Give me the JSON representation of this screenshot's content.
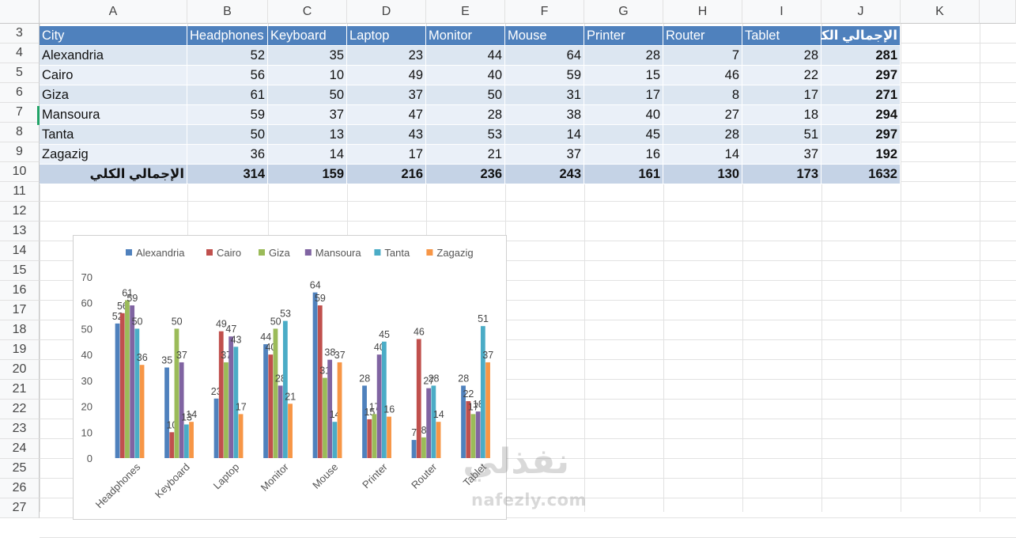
{
  "sheet": {
    "columns": [
      "A",
      "B",
      "C",
      "D",
      "E",
      "F",
      "G",
      "H",
      "I",
      "J",
      "K"
    ],
    "rows": [
      "3",
      "4",
      "5",
      "6",
      "7",
      "8",
      "9",
      "10",
      "11",
      "12",
      "13",
      "14",
      "15",
      "16",
      "17",
      "18",
      "19",
      "20",
      "21",
      "22",
      "23",
      "24",
      "25",
      "26",
      "27"
    ],
    "table": {
      "headers": [
        "City",
        "Headphones",
        "Keyboard",
        "Laptop",
        "Monitor",
        "Mouse",
        "Printer",
        "Router",
        "Tablet",
        "الإجمالي الكلي"
      ],
      "rows": [
        {
          "city": "Alexandria",
          "values": [
            "52",
            "35",
            "23",
            "44",
            "64",
            "28",
            "7",
            "28"
          ],
          "total": "281"
        },
        {
          "city": "Cairo",
          "values": [
            "56",
            "10",
            "49",
            "40",
            "59",
            "15",
            "46",
            "22"
          ],
          "total": "297"
        },
        {
          "city": "Giza",
          "values": [
            "61",
            "50",
            "37",
            "50",
            "31",
            "17",
            "8",
            "17"
          ],
          "total": "271"
        },
        {
          "city": "Mansoura",
          "values": [
            "59",
            "37",
            "47",
            "28",
            "38",
            "40",
            "27",
            "18"
          ],
          "total": "294"
        },
        {
          "city": "Tanta",
          "values": [
            "50",
            "13",
            "43",
            "53",
            "14",
            "45",
            "28",
            "51"
          ],
          "total": "297"
        },
        {
          "city": "Zagazig",
          "values": [
            "36",
            "14",
            "17",
            "21",
            "37",
            "16",
            "14",
            "37"
          ],
          "total": "192"
        }
      ],
      "grand_total": {
        "label": "الإجمالي الكلي",
        "values": [
          "314",
          "159",
          "216",
          "236",
          "243",
          "161",
          "130",
          "173"
        ],
        "total": "1632"
      }
    }
  },
  "chart_data": {
    "type": "bar",
    "categories": [
      "Headphones",
      "Keyboard",
      "Laptop",
      "Monitor",
      "Mouse",
      "Printer",
      "Router",
      "Tablet"
    ],
    "series": [
      {
        "name": "Alexandria",
        "color": "#4f81bd",
        "values": [
          52,
          35,
          23,
          44,
          64,
          28,
          7,
          28
        ]
      },
      {
        "name": "Cairo",
        "color": "#c0504d",
        "values": [
          56,
          10,
          49,
          40,
          59,
          15,
          46,
          22
        ]
      },
      {
        "name": "Giza",
        "color": "#9bbb59",
        "values": [
          61,
          50,
          37,
          50,
          31,
          17,
          8,
          17
        ]
      },
      {
        "name": "Mansoura",
        "color": "#8064a2",
        "values": [
          59,
          37,
          47,
          28,
          38,
          40,
          27,
          18
        ]
      },
      {
        "name": "Tanta",
        "color": "#4bacc6",
        "values": [
          50,
          13,
          43,
          53,
          14,
          45,
          28,
          51
        ]
      },
      {
        "name": "Zagazig",
        "color": "#f79646",
        "values": [
          36,
          14,
          17,
          21,
          37,
          16,
          14,
          37
        ]
      }
    ],
    "ylim": [
      0,
      70
    ],
    "yticks": [
      0,
      10,
      20,
      30,
      40,
      50,
      60,
      70
    ],
    "legend": "top",
    "data_labels": true,
    "title": "",
    "xlabel": "",
    "ylabel": ""
  },
  "watermark": {
    "top": "نفذلي",
    "bottom": "nafezly.com"
  }
}
